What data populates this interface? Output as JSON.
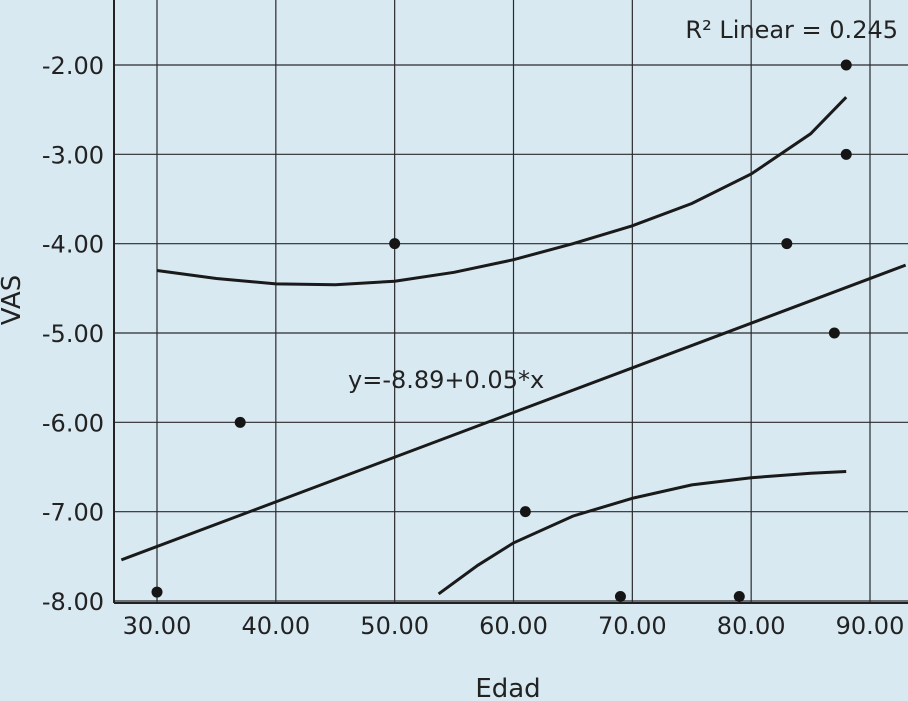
{
  "chart_data": {
    "type": "scatter",
    "xlabel": "Edad",
    "ylabel": "VAS",
    "xlim": [
      27,
      93
    ],
    "ylim": [
      -8.0,
      -1.4
    ],
    "x_ticks": [
      30,
      40,
      50,
      60,
      70,
      80,
      90
    ],
    "x_tick_labels": [
      "30.00",
      "40.00",
      "50.00",
      "60.00",
      "70.00",
      "80.00",
      "90.00"
    ],
    "y_ticks": [
      -2,
      -3,
      -4,
      -5,
      -6,
      -7,
      -8
    ],
    "y_tick_labels": [
      "-2.00",
      "-3.00",
      "-4.00",
      "-5.00",
      "-6.00",
      "-7.00",
      "-8.00"
    ],
    "grid": true,
    "points": [
      {
        "x": 30,
        "y": -7.9
      },
      {
        "x": 37,
        "y": -6.0
      },
      {
        "x": 50,
        "y": -4.0
      },
      {
        "x": 61,
        "y": -7.0
      },
      {
        "x": 69,
        "y": -7.95
      },
      {
        "x": 79,
        "y": -7.95
      },
      {
        "x": 83,
        "y": -4.0
      },
      {
        "x": 87,
        "y": -5.0
      },
      {
        "x": 88,
        "y": -2.0
      },
      {
        "x": 88,
        "y": -3.0
      }
    ],
    "fit_line": {
      "intercept": -8.89,
      "slope": 0.05,
      "x_range": [
        27,
        93
      ]
    },
    "upper_band": [
      [
        30,
        -4.3
      ],
      [
        35,
        -4.39
      ],
      [
        40,
        -4.45
      ],
      [
        45,
        -4.46
      ],
      [
        50,
        -4.42
      ],
      [
        55,
        -4.32
      ],
      [
        60,
        -4.18
      ],
      [
        65,
        -4.0
      ],
      [
        70,
        -3.8
      ],
      [
        75,
        -3.55
      ],
      [
        80,
        -3.22
      ],
      [
        85,
        -2.77
      ],
      [
        88,
        -2.36
      ]
    ],
    "lower_band": [
      [
        53.7,
        -7.92
      ],
      [
        57,
        -7.6
      ],
      [
        60,
        -7.35
      ],
      [
        65,
        -7.05
      ],
      [
        70,
        -6.85
      ],
      [
        75,
        -6.7
      ],
      [
        80,
        -6.62
      ],
      [
        85,
        -6.57
      ],
      [
        88,
        -6.55
      ]
    ],
    "annotations": {
      "r2": "R² Linear = 0.245",
      "equation": "y=-8.89+0.05*x"
    }
  }
}
